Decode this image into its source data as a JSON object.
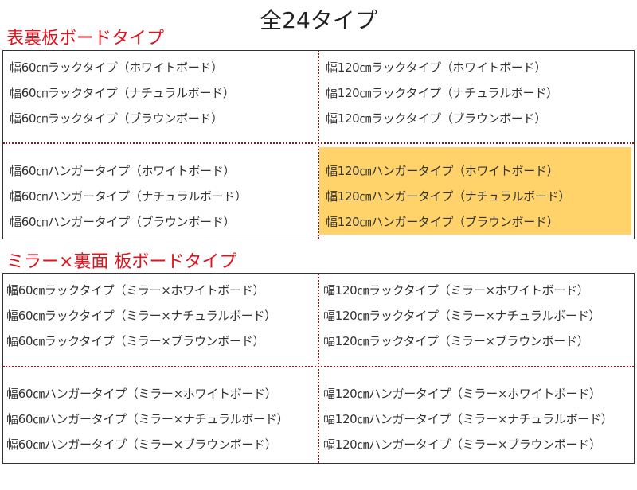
{
  "title": "全24タイプ",
  "accent_color": "#e0141e",
  "highlight_color": "#ffd36a",
  "sections": [
    {
      "heading": "表裏板ボードタイプ",
      "cells": [
        {
          "items": [
            "幅60㎝ラックタイプ（ホワイトボード）",
            "幅60㎝ラックタイプ（ナチュラルボード）",
            "幅60㎝ラックタイプ（ブラウンボード）"
          ]
        },
        {
          "items": [
            "幅120㎝ラックタイプ（ホワイトボード）",
            "幅120㎝ラックタイプ（ナチュラルボード）",
            "幅120㎝ラックタイプ（ブラウンボード）"
          ]
        },
        {
          "items": [
            "幅60㎝ハンガータイプ（ホワイトボード）",
            "幅60㎝ハンガータイプ（ナチュラルボード）",
            "幅60㎝ハンガータイプ（ブラウンボード）"
          ]
        },
        {
          "items": [
            "幅120㎝ハンガータイプ（ホワイトボード）",
            "幅120㎝ハンガータイプ（ナチュラルボード）",
            "幅120㎝ハンガータイプ（ブラウンボード）"
          ],
          "highlighted": true
        }
      ]
    },
    {
      "heading": "ミラー×裏面 板ボードタイプ",
      "cells": [
        {
          "items": [
            "幅60㎝ラックタイプ（ミラー×ホワイトボード）",
            "幅60㎝ラックタイプ（ミラー×ナチュラルボード）",
            "幅60㎝ラックタイプ（ミラー×ブラウンボード）"
          ]
        },
        {
          "items": [
            "幅120㎝ラックタイプ（ミラー×ホワイトボード）",
            "幅120㎝ラックタイプ（ミラー×ナチュラルボード）",
            "幅120㎝ラックタイプ（ミラー×ブラウンボード）"
          ]
        },
        {
          "items": [
            "幅60㎝ハンガータイプ（ミラー×ホワイトボード）",
            "幅60㎝ハンガータイプ（ミラー×ナチュラルボード）",
            "幅60㎝ハンガータイプ（ミラー×ブラウンボード）"
          ]
        },
        {
          "items": [
            "幅120㎝ハンガータイプ（ミラー×ホワイトボード）",
            "幅120㎝ハンガータイプ（ミラー×ナチュラルボード）",
            "幅120㎝ハンガータイプ（ミラー×ブラウンボード）"
          ]
        }
      ]
    }
  ]
}
